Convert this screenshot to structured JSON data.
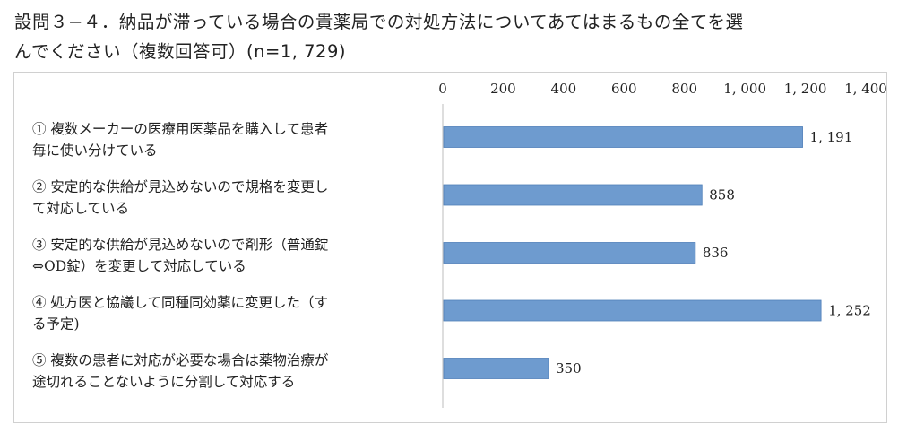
{
  "title_lines": [
    "設問３−４．納品が滞っている場合の貴薬局での対処方法についてあてはまるもの全てを選",
    "んでください（複数回答可）(n=1, 729)"
  ],
  "colors": {
    "bar": "#6e9bcf",
    "bar_border": "#4f7fb8"
  },
  "chart_data": {
    "type": "bar",
    "orientation": "horizontal",
    "title": "設問３−４．納品が滞っている場合の貴薬局での対処方法についてあてはまるもの全てを選んでください（複数回答可）(n=1, 729)",
    "categories": [
      [
        "① 複数メーカーの医療用医薬品を購入して患者",
        "毎に使い分けている"
      ],
      [
        "② 安定的な供給が見込めないので規格を変更し",
        "て対応している"
      ],
      [
        "③ 安定的な供給が見込めないので剤形（普通錠",
        "⇔OD錠）を変更して対応している"
      ],
      [
        "④ 処方医と協議して同種同効薬に変更した（す",
        "る予定)"
      ],
      [
        "⑤ 複数の患者に対応が必要な場合は薬物治療が",
        "途切れることないように分割して対応する"
      ]
    ],
    "values": [
      1191,
      858,
      836,
      1252,
      350
    ],
    "value_labels": [
      "1, 191",
      "858",
      "836",
      "1, 252",
      "350"
    ],
    "xlim": [
      0,
      1400
    ],
    "xticks": [
      0,
      200,
      400,
      600,
      800,
      1000,
      1200,
      1400
    ],
    "xtick_labels": [
      "0",
      "200",
      "400",
      "600",
      "800",
      "1, 000",
      "1, 200",
      "1, 400"
    ],
    "axis_position": "top",
    "grid": false,
    "legend": "none"
  }
}
